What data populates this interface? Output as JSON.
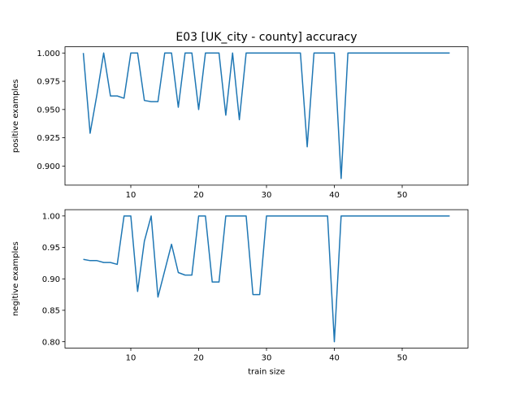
{
  "figure": {
    "title": "E03 [UK_city - county] accuracy",
    "line_color": "#1f77b4"
  },
  "chart_data": [
    {
      "type": "line",
      "title": "E03 [UK_city - county] accuracy",
      "xlabel": "",
      "ylabel": "positive examples",
      "xlim": [
        0.3,
        59.7
      ],
      "ylim": [
        0.8831,
        1.0055
      ],
      "xticks": [
        10,
        20,
        30,
        40,
        50
      ],
      "xtick_labels": [
        "10",
        "20",
        "30",
        "40",
        "50"
      ],
      "yticks": [
        0.9,
        0.925,
        0.95,
        0.975,
        1.0
      ],
      "ytick_labels": [
        "0.900",
        "0.925",
        "0.950",
        "0.975",
        "1.000"
      ],
      "grid": false,
      "series": [
        {
          "color": "#1f77b4",
          "x": [
            3,
            4,
            5,
            6,
            7,
            8,
            9,
            10,
            11,
            12,
            13,
            14,
            15,
            16,
            17,
            18,
            19,
            20,
            21,
            22,
            23,
            24,
            25,
            26,
            27,
            28,
            29,
            30,
            31,
            32,
            33,
            34,
            35,
            36,
            37,
            38,
            39,
            40,
            41,
            42,
            43,
            44,
            45,
            46,
            47,
            48,
            49,
            50,
            51,
            52,
            53,
            54,
            55,
            56,
            57
          ],
          "y": [
            1.0,
            0.929,
            0.963,
            1.0,
            0.962,
            0.962,
            0.96,
            1.0,
            1.0,
            0.958,
            0.957,
            0.957,
            1.0,
            1.0,
            0.952,
            1.0,
            1.0,
            0.95,
            1.0,
            1.0,
            1.0,
            0.945,
            1.0,
            0.941,
            1.0,
            1.0,
            1.0,
            1.0,
            1.0,
            1.0,
            1.0,
            1.0,
            1.0,
            0.917,
            1.0,
            1.0,
            1.0,
            1.0,
            0.889,
            1.0,
            1.0,
            1.0,
            1.0,
            1.0,
            1.0,
            1.0,
            1.0,
            1.0,
            1.0,
            1.0,
            1.0,
            1.0,
            1.0,
            1.0,
            1.0
          ]
        }
      ]
    },
    {
      "type": "line",
      "title": "",
      "xlabel": "train size",
      "ylabel": "negitive examples",
      "xlim": [
        0.3,
        59.7
      ],
      "ylim": [
        0.79,
        1.01
      ],
      "xticks": [
        10,
        20,
        30,
        40,
        50
      ],
      "xtick_labels": [
        "10",
        "20",
        "30",
        "40",
        "50"
      ],
      "yticks": [
        0.8,
        0.85,
        0.9,
        0.95,
        1.0
      ],
      "ytick_labels": [
        "0.80",
        "0.85",
        "0.90",
        "0.95",
        "1.00"
      ],
      "grid": false,
      "series": [
        {
          "color": "#1f77b4",
          "x": [
            3,
            4,
            5,
            6,
            7,
            8,
            9,
            10,
            11,
            12,
            13,
            14,
            15,
            16,
            17,
            18,
            19,
            20,
            21,
            22,
            23,
            24,
            25,
            26,
            27,
            28,
            29,
            30,
            31,
            32,
            33,
            34,
            35,
            36,
            37,
            38,
            39,
            40,
            41,
            42,
            43,
            44,
            45,
            46,
            47,
            48,
            49,
            50,
            51,
            52,
            53,
            54,
            55,
            56,
            57
          ],
          "y": [
            0.931,
            0.929,
            0.929,
            0.926,
            0.926,
            0.923,
            1.0,
            1.0,
            0.88,
            0.96,
            1.0,
            0.871,
            0.913,
            0.955,
            0.91,
            0.906,
            0.906,
            1.0,
            1.0,
            0.895,
            0.895,
            1.0,
            1.0,
            1.0,
            1.0,
            0.875,
            0.875,
            1.0,
            1.0,
            1.0,
            1.0,
            1.0,
            1.0,
            1.0,
            1.0,
            1.0,
            1.0,
            0.8,
            1.0,
            1.0,
            1.0,
            1.0,
            1.0,
            1.0,
            1.0,
            1.0,
            1.0,
            1.0,
            1.0,
            1.0,
            1.0,
            1.0,
            1.0,
            1.0,
            1.0
          ]
        }
      ]
    }
  ]
}
